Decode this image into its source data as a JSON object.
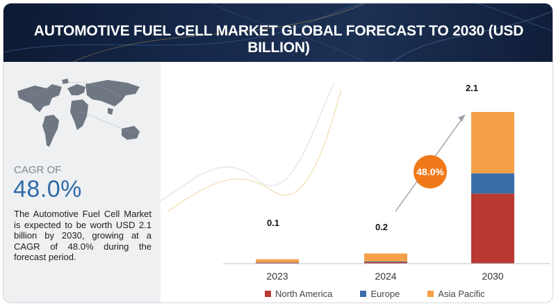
{
  "header": {
    "title": "AUTOMOTIVE FUEL CELL MARKET GLOBAL FORECAST TO 2030 (USD BILLION)"
  },
  "side": {
    "cagr_label": "CAGR OF",
    "cagr_value": "48.0%",
    "description": "The Automotive Fuel Cell Market is expected to be worth USD 2.1 billion by 2030, growing at a CAGR of 48.0% during the forecast period."
  },
  "colors": {
    "north_america": "#b83a32",
    "europe": "#3a6ea8",
    "asia_pacific": "#f5a048",
    "cagr_badge": "#f07a1a",
    "accent_text": "#2f6aa8"
  },
  "icons": {
    "map": "world-map-icon"
  },
  "chart_data": {
    "type": "bar",
    "stacked": true,
    "categories": [
      "2023",
      "2024",
      "2030"
    ],
    "totals_labels": [
      "0.1",
      "0.2",
      "2.1"
    ],
    "series": [
      {
        "name": "North America",
        "values": [
          0.01,
          0.02,
          0.97
        ]
      },
      {
        "name": "Europe",
        "values": [
          0.005,
          0.01,
          0.28
        ]
      },
      {
        "name": "Asia Pacific",
        "values": [
          0.045,
          0.11,
          0.85
        ]
      }
    ],
    "annotation": "48.0%",
    "ylim": [
      0,
      2.1
    ],
    "legend_position": "bottom",
    "grid": false
  }
}
